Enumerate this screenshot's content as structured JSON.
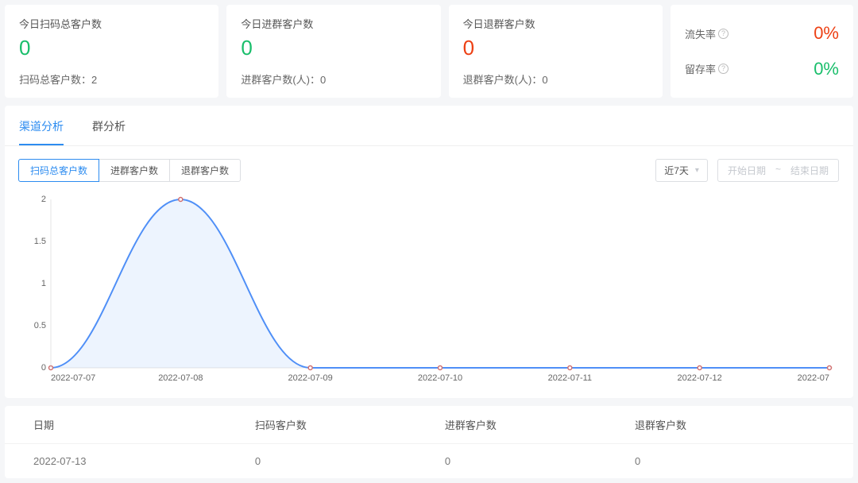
{
  "stats": [
    {
      "title": "今日扫码总客户数",
      "value": "0",
      "value_color": "#19be6b",
      "sub_label": "扫码总客户数：",
      "sub_value": "2"
    },
    {
      "title": "今日进群客户数",
      "value": "0",
      "value_color": "#19be6b",
      "sub_label": "进群客户数(人)：",
      "sub_value": "0"
    },
    {
      "title": "今日退群客户数",
      "value": "0",
      "value_color": "#ed4014",
      "sub_label": "退群客户数(人)：",
      "sub_value": "0"
    }
  ],
  "rates": [
    {
      "label": "流失率",
      "value": "0%",
      "color": "#ed4014"
    },
    {
      "label": "留存率",
      "value": "0%",
      "color": "#19be6b"
    }
  ],
  "tabs": [
    {
      "label": "渠道分析",
      "active": true
    },
    {
      "label": "群分析",
      "active": false
    }
  ],
  "metric_buttons": [
    {
      "label": "扫码总客户数",
      "active": true
    },
    {
      "label": "进群客户数",
      "active": false
    },
    {
      "label": "退群客户数",
      "active": false
    }
  ],
  "period_select": {
    "label": "近7天"
  },
  "daterange": {
    "start": "开始日期",
    "sep": "~",
    "end": "结束日期"
  },
  "chart": {
    "type": "area",
    "line_color": "#4f8ff7",
    "area_color": "#4f8ff7",
    "marker_stroke": "#d07070",
    "grid_color": "#cccccc",
    "background_color": "#ffffff",
    "ylim": [
      0,
      2
    ],
    "ytick_step": 0.5,
    "yticks": [
      0,
      0.5,
      1,
      1.5,
      2
    ],
    "x_labels": [
      "2022-07-07",
      "2022-07-08",
      "2022-07-09",
      "2022-07-10",
      "2022-07-11",
      "2022-07-12",
      "2022-07"
    ],
    "values": [
      0,
      2,
      0,
      0,
      0,
      0,
      0
    ],
    "axis_fontsize": 11
  },
  "table": {
    "columns": [
      "日期",
      "扫码客户数",
      "进群客户数",
      "退群客户数"
    ],
    "rows": [
      [
        "2022-07-13",
        "0",
        "0",
        "0"
      ]
    ]
  }
}
